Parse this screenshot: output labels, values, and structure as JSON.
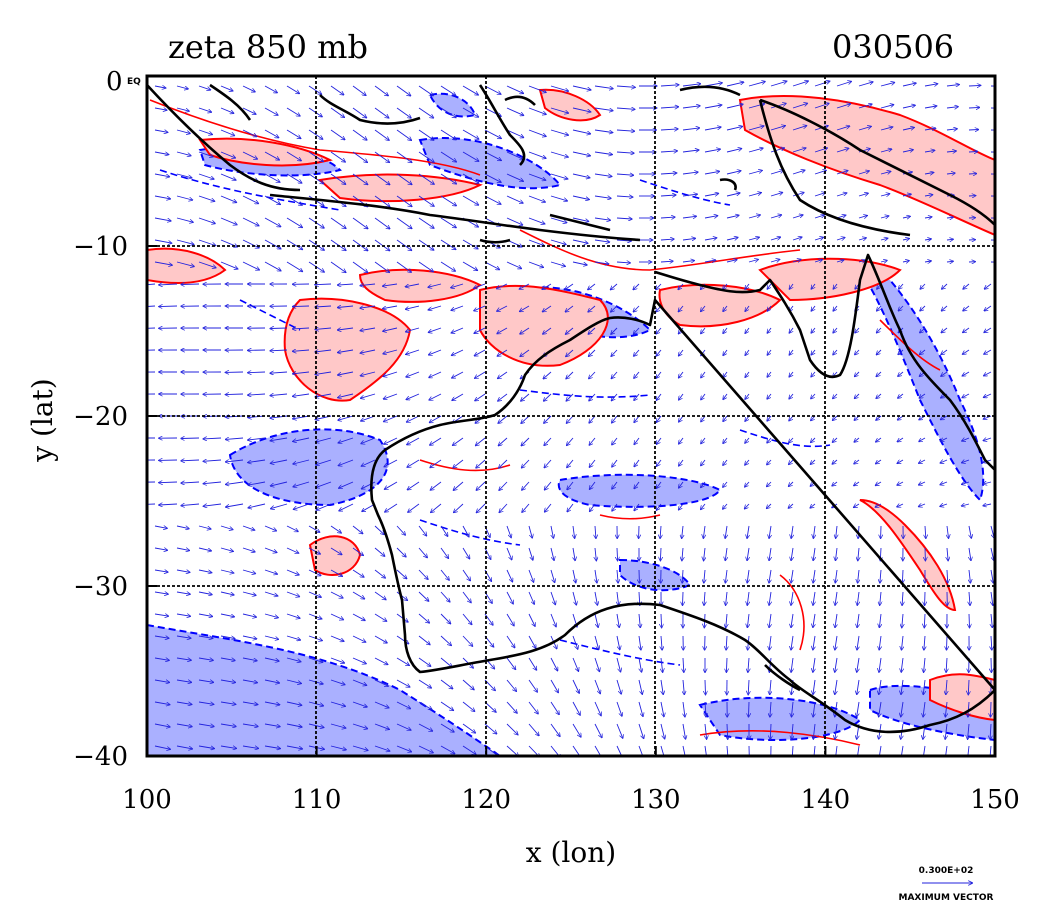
{
  "figure": {
    "title_left": "zeta 850 mb",
    "title_right": "030506",
    "corner_label": "0",
    "corner_small": "EQ",
    "x_axis_title": "x (lon)",
    "y_axis_title": "y (lat)",
    "ref_vector_value": "0.300E+02",
    "ref_vector_caption": "MAXIMUM VECTOR"
  },
  "axes": {
    "x_ticks": [
      {
        "value": 100,
        "label": "100"
      },
      {
        "value": 110,
        "label": "110"
      },
      {
        "value": 120,
        "label": "120"
      },
      {
        "value": 130,
        "label": "130"
      },
      {
        "value": 140,
        "label": "140"
      },
      {
        "value": 150,
        "label": "150"
      }
    ],
    "y_ticks": [
      {
        "value": -10,
        "label": "−10"
      },
      {
        "value": -20,
        "label": "−20"
      },
      {
        "value": -30,
        "label": "−30"
      },
      {
        "value": -40,
        "label": "−40"
      }
    ],
    "xlim": [
      100,
      150
    ],
    "ylim": [
      -40,
      0
    ],
    "grid": true
  },
  "colors": {
    "positive_contour": "#ff0000",
    "positive_fill": "#ffc8c8",
    "negative_contour": "#0000ff",
    "negative_fill": "#aab0ff",
    "coastline": "#000000",
    "vectors": "#2222dd"
  },
  "map": {
    "region": "Australia / Maritime Continent",
    "features": [
      "coastline",
      "vorticity contours",
      "wind vectors",
      "lat-lon grid"
    ]
  }
}
